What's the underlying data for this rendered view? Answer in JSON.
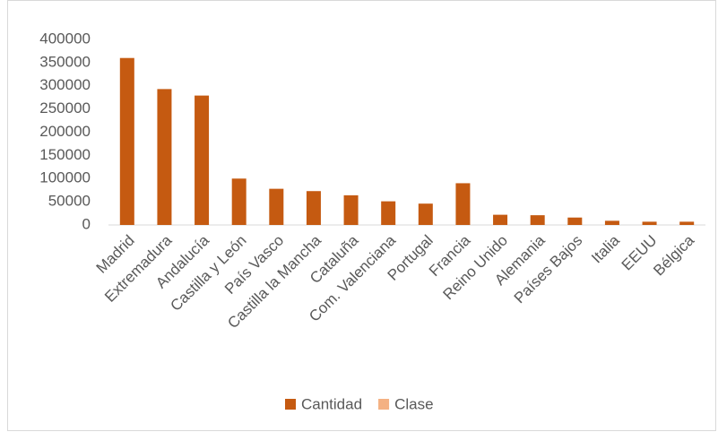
{
  "chart_data": {
    "type": "bar",
    "categories": [
      "Madrid",
      "Extremadura",
      "Andalucía",
      "Castilla y León",
      "País Vasco",
      "Castilla la Mancha",
      "Cataluña",
      "Com. Valenciana",
      "Portugal",
      "Francia",
      "Reino Unido",
      "Alemania",
      "Países Bajos",
      "Italia",
      "EEUU",
      "Bélgica"
    ],
    "series": [
      {
        "name": "Cantidad",
        "color": "#c55a11",
        "values": [
          360000,
          293000,
          279000,
          100000,
          78000,
          73000,
          64000,
          51000,
          46000,
          90000,
          22000,
          21000,
          16000,
          9000,
          7000,
          7000
        ]
      },
      {
        "name": "Clase",
        "color": "#f4b183",
        "values": [
          null,
          null,
          null,
          null,
          null,
          null,
          null,
          null,
          null,
          null,
          null,
          null,
          null,
          null,
          null,
          null
        ]
      }
    ],
    "ylim": [
      0,
      400000
    ],
    "yticks": [
      0,
      50000,
      100000,
      150000,
      200000,
      250000,
      300000,
      350000,
      400000
    ],
    "grid": false,
    "legend": "bottom"
  }
}
